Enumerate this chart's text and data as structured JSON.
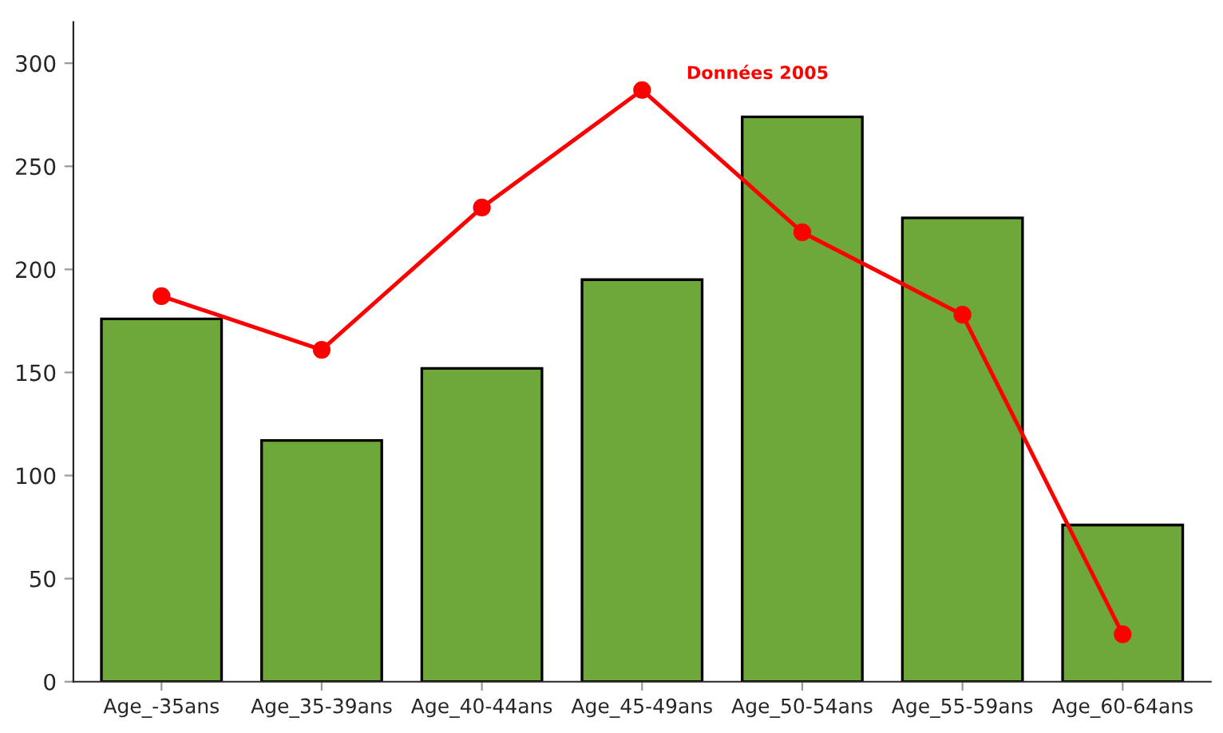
{
  "chart_data": {
    "type": "bar",
    "categories": [
      "Age_-35ans",
      "Age_35-39ans",
      "Age_40-44ans",
      "Age_45-49ans",
      "Age_50-54ans",
      "Age_55-59ans",
      "Age_60-64ans"
    ],
    "series": [
      {
        "color": "#6fa83a",
        "values": [
          176,
          117,
          152,
          195,
          274,
          225,
          76
        ]
      },
      {
        "type": "line",
        "name": "Données 2005",
        "color": "#ff0000",
        "values": [
          187,
          161,
          230,
          287,
          218,
          178,
          23
        ],
        "marker": "circle"
      }
    ],
    "ylim": [
      0,
      320
    ],
    "yticks": [
      0,
      50,
      100,
      150,
      200,
      250,
      300
    ],
    "grid": false
  }
}
